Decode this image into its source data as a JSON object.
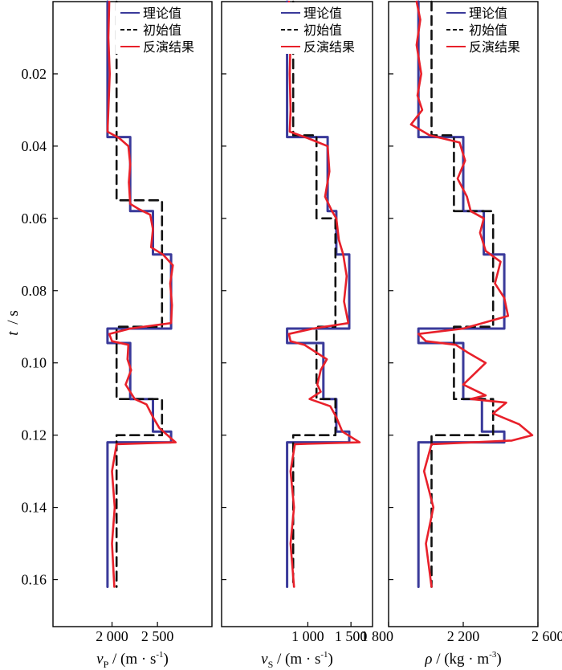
{
  "y_axis": {
    "title_var": "t",
    "title_unit": "/ s",
    "ticks": [
      "0.02",
      "0.04",
      "0.06",
      "0.08",
      "0.10",
      "0.12",
      "0.14",
      "0.16"
    ]
  },
  "legend": {
    "theory": "理论值",
    "initial": "初始值",
    "inversion": "反演结果"
  },
  "colors": {
    "theory": "#3a3a9a",
    "initial": "#111111",
    "inversion": "#e8202a"
  },
  "chart_data": [
    {
      "type": "line",
      "panel": "vp",
      "xlabel_var": "v",
      "xlabel_sub": "P",
      "xlabel_unit": " / (m · s",
      "xlabel_exp": "-1",
      "xticks": [
        {
          "value": 2000,
          "label": "2 000"
        },
        {
          "value": 2500,
          "label": "2 500"
        }
      ],
      "xlim": [
        1350,
        3100
      ],
      "ylim": [
        0,
        0.173
      ],
      "grid": false,
      "legend_position": "top-right",
      "series": [
        {
          "key": "theory",
          "name": "理论值",
          "points": [
            [
              1950,
              0
            ],
            [
              1950,
              0.0375
            ],
            [
              2200,
              0.0375
            ],
            [
              2200,
              0.058
            ],
            [
              2450,
              0.058
            ],
            [
              2450,
              0.07
            ],
            [
              2650,
              0.07
            ],
            [
              2650,
              0.0905
            ],
            [
              1950,
              0.0905
            ],
            [
              1950,
              0.0945
            ],
            [
              2200,
              0.0945
            ],
            [
              2200,
              0.11
            ],
            [
              2450,
              0.11
            ],
            [
              2450,
              0.119
            ],
            [
              2650,
              0.119
            ],
            [
              2650,
              0.122
            ],
            [
              1950,
              0.122
            ],
            [
              1950,
              0.162
            ]
          ]
        },
        {
          "key": "initial",
          "name": "初始值",
          "points": [
            [
              2050,
              0
            ],
            [
              2050,
              0.055
            ],
            [
              2550,
              0.055
            ],
            [
              2550,
              0.09
            ],
            [
              2050,
              0.09
            ],
            [
              2050,
              0.11
            ],
            [
              2550,
              0.11
            ],
            [
              2550,
              0.12
            ],
            [
              2050,
              0.12
            ],
            [
              2050,
              0.162
            ]
          ]
        },
        {
          "key": "inversion",
          "name": "反演结果",
          "points": [
            [
              1970,
              0
            ],
            [
              1960,
              0.01
            ],
            [
              1975,
              0.02
            ],
            [
              1960,
              0.03
            ],
            [
              1950,
              0.036
            ],
            [
              2080,
              0.0378
            ],
            [
              2180,
              0.04
            ],
            [
              2200,
              0.045
            ],
            [
              2185,
              0.05
            ],
            [
              2200,
              0.056
            ],
            [
              2300,
              0.0575
            ],
            [
              2420,
              0.059
            ],
            [
              2450,
              0.063
            ],
            [
              2430,
              0.068
            ],
            [
              2560,
              0.07
            ],
            [
              2670,
              0.073
            ],
            [
              2640,
              0.078
            ],
            [
              2660,
              0.084
            ],
            [
              2650,
              0.089
            ],
            [
              2200,
              0.0905
            ],
            [
              1970,
              0.092
            ],
            [
              2000,
              0.094
            ],
            [
              2180,
              0.095
            ],
            [
              2170,
              0.099
            ],
            [
              2210,
              0.102
            ],
            [
              2150,
              0.106
            ],
            [
              2250,
              0.11
            ],
            [
              2380,
              0.1115
            ],
            [
              2450,
              0.115
            ],
            [
              2520,
              0.118
            ],
            [
              2700,
              0.122
            ],
            [
              2050,
              0.1225
            ],
            [
              2000,
              0.13
            ],
            [
              2030,
              0.14
            ],
            [
              2000,
              0.15
            ],
            [
              2025,
              0.162
            ]
          ]
        }
      ]
    },
    {
      "type": "line",
      "panel": "vs",
      "xlabel_var": "v",
      "xlabel_sub": "S",
      "xlabel_unit": " / (m · s",
      "xlabel_exp": "-1",
      "xticks": [
        {
          "value": 1000,
          "label": "1 000"
        },
        {
          "value": 1500,
          "label": "1 500"
        }
      ],
      "xlim": [
        0,
        1750
      ],
      "ylim": [
        0,
        0.173
      ],
      "grid": false,
      "legend_position": "top-right",
      "series": [
        {
          "key": "theory",
          "name": "理论值",
          "points": [
            [
              760,
              0
            ],
            [
              760,
              0.0375
            ],
            [
              1230,
              0.0375
            ],
            [
              1230,
              0.058
            ],
            [
              1330,
              0.058
            ],
            [
              1330,
              0.07
            ],
            [
              1480,
              0.07
            ],
            [
              1480,
              0.0905
            ],
            [
              760,
              0.0905
            ],
            [
              760,
              0.0945
            ],
            [
              1180,
              0.0945
            ],
            [
              1180,
              0.11
            ],
            [
              1330,
              0.11
            ],
            [
              1330,
              0.119
            ],
            [
              1480,
              0.119
            ],
            [
              1480,
              0.122
            ],
            [
              760,
              0.122
            ],
            [
              760,
              0.162
            ]
          ]
        },
        {
          "key": "initial",
          "name": "初始值",
          "points": [
            [
              830,
              0
            ],
            [
              830,
              0.037
            ],
            [
              1100,
              0.037
            ],
            [
              1100,
              0.06
            ],
            [
              1320,
              0.06
            ],
            [
              1320,
              0.09
            ],
            [
              1100,
              0.09
            ],
            [
              1100,
              0.11
            ],
            [
              1320,
              0.11
            ],
            [
              1320,
              0.12
            ],
            [
              830,
              0.12
            ],
            [
              830,
              0.162
            ]
          ]
        },
        {
          "key": "inversion",
          "name": "反演结果",
          "points": [
            [
              780,
              0
            ],
            [
              800,
              0.01
            ],
            [
              790,
              0.02
            ],
            [
              800,
              0.03
            ],
            [
              790,
              0.036
            ],
            [
              1000,
              0.0378
            ],
            [
              1230,
              0.04
            ],
            [
              1250,
              0.047
            ],
            [
              1200,
              0.054
            ],
            [
              1280,
              0.058
            ],
            [
              1330,
              0.06
            ],
            [
              1360,
              0.066
            ],
            [
              1410,
              0.07
            ],
            [
              1450,
              0.076
            ],
            [
              1420,
              0.083
            ],
            [
              1470,
              0.089
            ],
            [
              1060,
              0.0905
            ],
            [
              780,
              0.092
            ],
            [
              800,
              0.094
            ],
            [
              960,
              0.095
            ],
            [
              1090,
              0.097
            ],
            [
              1220,
              0.099
            ],
            [
              1150,
              0.102
            ],
            [
              1110,
              0.106
            ],
            [
              1150,
              0.108
            ],
            [
              1020,
              0.11
            ],
            [
              1260,
              0.112
            ],
            [
              1330,
              0.115
            ],
            [
              1400,
              0.119
            ],
            [
              1600,
              0.122
            ],
            [
              850,
              0.1225
            ],
            [
              800,
              0.13
            ],
            [
              840,
              0.14
            ],
            [
              800,
              0.15
            ],
            [
              840,
              0.162
            ]
          ]
        }
      ]
    },
    {
      "type": "line",
      "panel": "rho",
      "xlabel_var": "ρ",
      "xlabel_sub": "",
      "xlabel_unit": " / (kg · m",
      "xlabel_exp": "-3",
      "xticks": [
        {
          "value": 1800,
          "label": "1 800"
        },
        {
          "value": 2200,
          "label": "2 200"
        },
        {
          "value": 2600,
          "label": "2 600"
        }
      ],
      "xlim": [
        1800,
        2600
      ],
      "ylim": [
        0,
        0.173
      ],
      "grid": false,
      "legend_position": "top-right",
      "series": [
        {
          "key": "theory",
          "name": "理论值",
          "points": [
            [
              1960,
              0
            ],
            [
              1960,
              0.0375
            ],
            [
              2200,
              0.0375
            ],
            [
              2200,
              0.058
            ],
            [
              2310,
              0.058
            ],
            [
              2310,
              0.07
            ],
            [
              2420,
              0.07
            ],
            [
              2420,
              0.0905
            ],
            [
              1960,
              0.0905
            ],
            [
              1960,
              0.0945
            ],
            [
              2200,
              0.0945
            ],
            [
              2200,
              0.11
            ],
            [
              2300,
              0.11
            ],
            [
              2300,
              0.119
            ],
            [
              2420,
              0.119
            ],
            [
              2420,
              0.122
            ],
            [
              1960,
              0.122
            ],
            [
              1960,
              0.162
            ]
          ]
        },
        {
          "key": "initial",
          "name": "初始值",
          "points": [
            [
              2030,
              0
            ],
            [
              2030,
              0.037
            ],
            [
              2150,
              0.037
            ],
            [
              2150,
              0.058
            ],
            [
              2360,
              0.058
            ],
            [
              2360,
              0.09
            ],
            [
              2150,
              0.09
            ],
            [
              2150,
              0.11
            ],
            [
              2360,
              0.11
            ],
            [
              2360,
              0.12
            ],
            [
              2030,
              0.12
            ],
            [
              2030,
              0.162
            ]
          ]
        },
        {
          "key": "inversion",
          "name": "反演结果",
          "points": [
            [
              1950,
              0
            ],
            [
              1970,
              0.005
            ],
            [
              1950,
              0.012
            ],
            [
              1975,
              0.02
            ],
            [
              1955,
              0.026
            ],
            [
              1980,
              0.03
            ],
            [
              1920,
              0.034
            ],
            [
              2020,
              0.037
            ],
            [
              2180,
              0.039
            ],
            [
              2210,
              0.044
            ],
            [
              2170,
              0.049
            ],
            [
              2220,
              0.054
            ],
            [
              2240,
              0.058
            ],
            [
              2310,
              0.06
            ],
            [
              2290,
              0.064
            ],
            [
              2320,
              0.069
            ],
            [
              2400,
              0.072
            ],
            [
              2370,
              0.078
            ],
            [
              2420,
              0.082
            ],
            [
              2440,
              0.087
            ],
            [
              2200,
              0.0905
            ],
            [
              1960,
              0.092
            ],
            [
              2000,
              0.094
            ],
            [
              2160,
              0.095
            ],
            [
              2220,
              0.097
            ],
            [
              2320,
              0.1
            ],
            [
              2260,
              0.103
            ],
            [
              2200,
              0.106
            ],
            [
              2320,
              0.109
            ],
            [
              2240,
              0.11
            ],
            [
              2430,
              0.111
            ],
            [
              2360,
              0.114
            ],
            [
              2500,
              0.117
            ],
            [
              2570,
              0.12
            ],
            [
              2460,
              0.1215
            ],
            [
              2030,
              0.1225
            ],
            [
              1990,
              0.13
            ],
            [
              2040,
              0.14
            ],
            [
              2000,
              0.15
            ],
            [
              2030,
              0.162
            ]
          ]
        }
      ]
    }
  ]
}
